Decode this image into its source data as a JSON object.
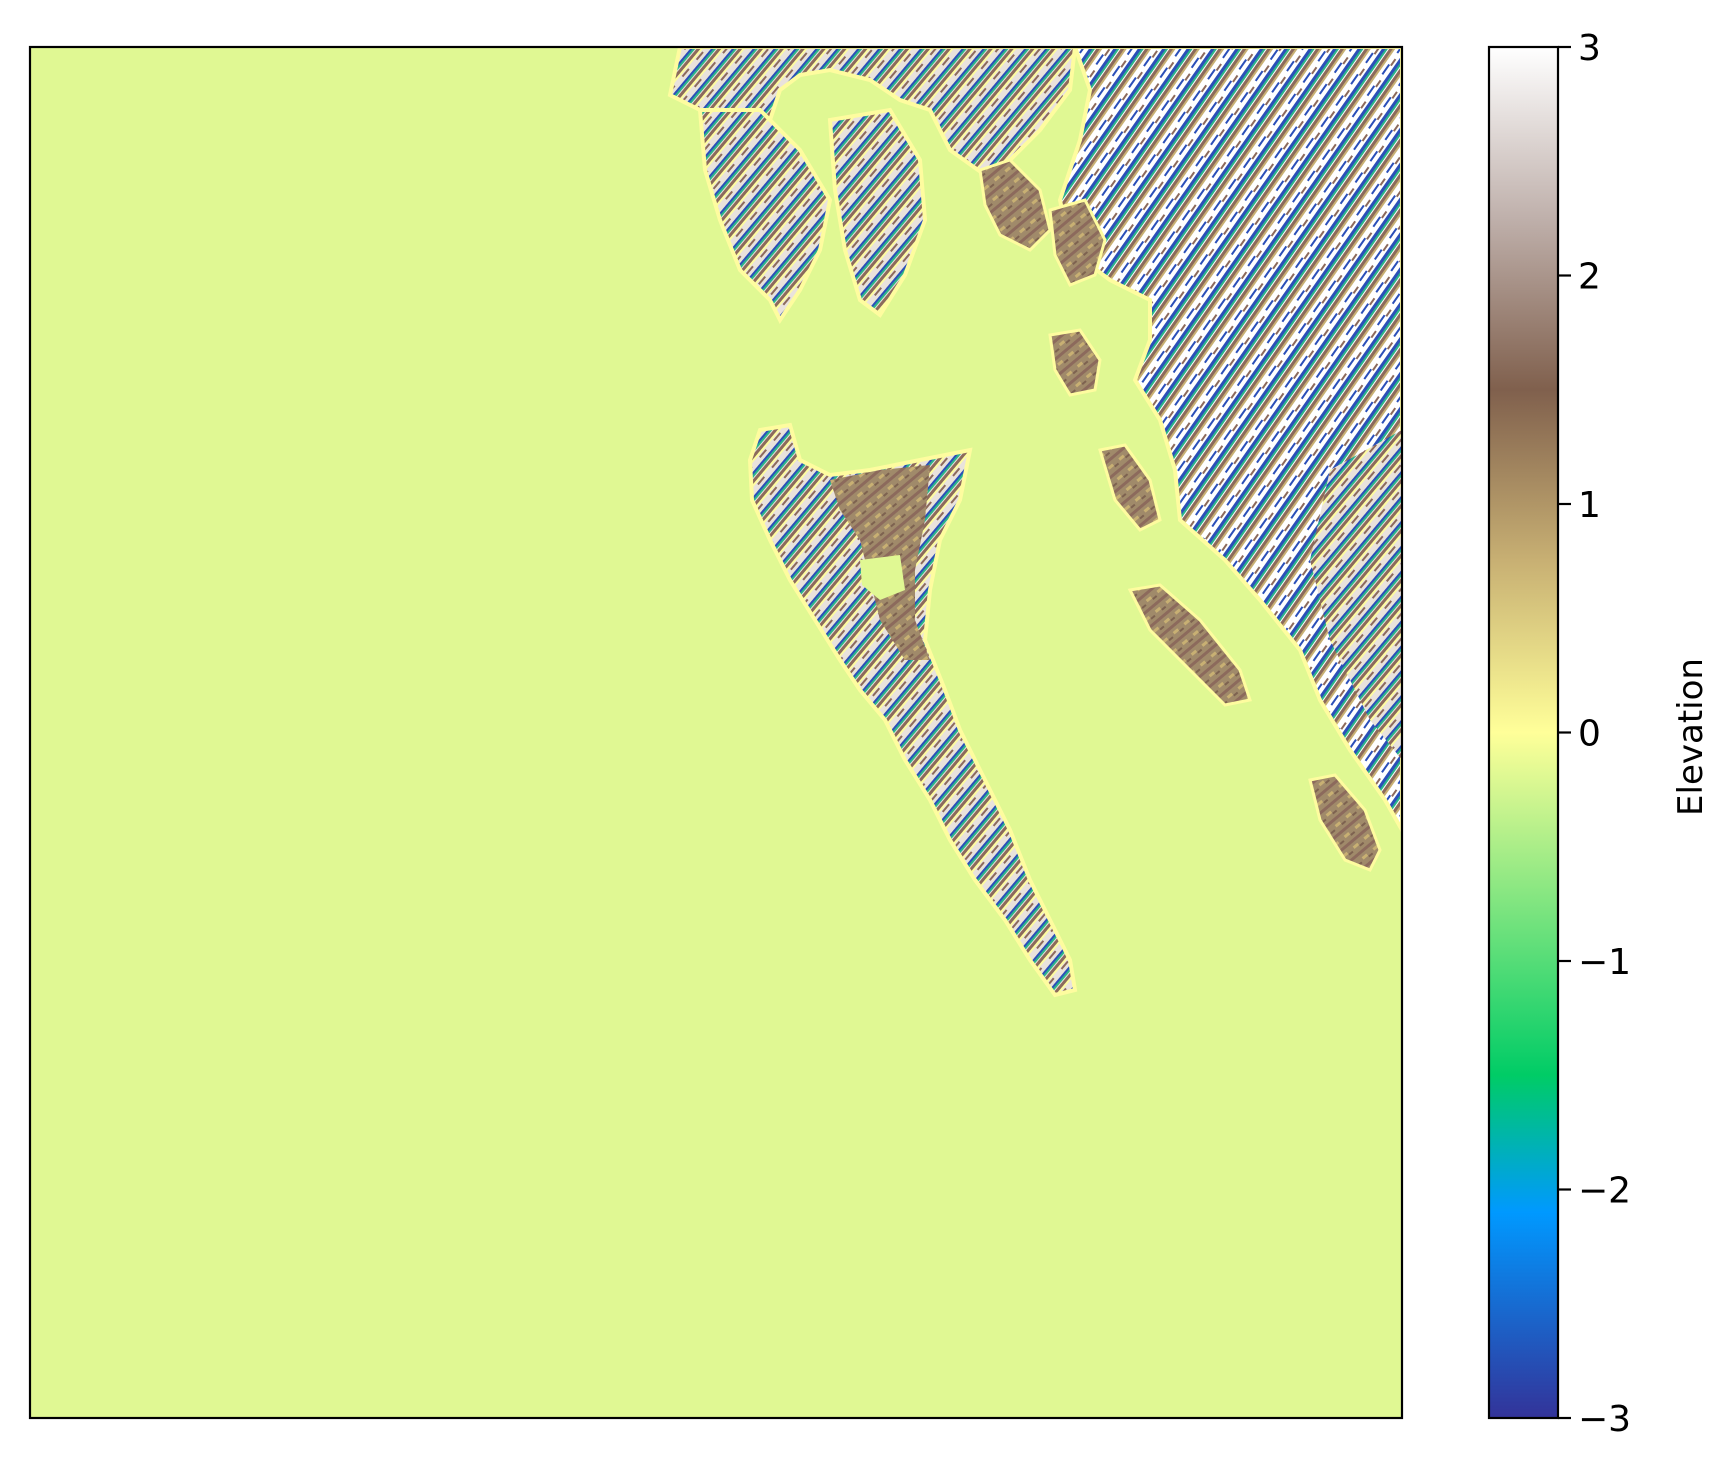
{
  "chart_data": {
    "type": "heatmap",
    "title": "",
    "xlabel": "",
    "ylabel": "",
    "axes_ticks_shown": false,
    "colormap": "terrain",
    "clim": [
      -3,
      3
    ],
    "colorbar": {
      "label": "Elevation",
      "ticks": [
        3,
        2,
        1,
        0,
        -1,
        -2,
        -3
      ],
      "tick_labels": [
        "3",
        "2",
        "1",
        "0",
        "−1",
        "−2",
        "−3"
      ],
      "stops": [
        {
          "value": -3.0,
          "color": "#333399"
        },
        {
          "value": -2.1,
          "color": "#0099ff"
        },
        {
          "value": -1.5,
          "color": "#00cc66"
        },
        {
          "value": -0.75,
          "color": "#80e580"
        },
        {
          "value": 0.0,
          "color": "#ffff99"
        },
        {
          "value": 0.75,
          "color": "#c8b073"
        },
        {
          "value": 1.5,
          "color": "#80604d"
        },
        {
          "value": 2.25,
          "color": "#bfb0ab"
        },
        {
          "value": 3.0,
          "color": "#ffffff"
        }
      ]
    },
    "background_value": -0.1,
    "colors": {
      "sea": "#e0f893",
      "coast": "#fefc9f",
      "lowland": "#a08a6a",
      "upland": "#8c6a5c",
      "ridge": "#f4f1ef",
      "valley": "#2b4fb8",
      "gully": "#2bb58a"
    }
  }
}
